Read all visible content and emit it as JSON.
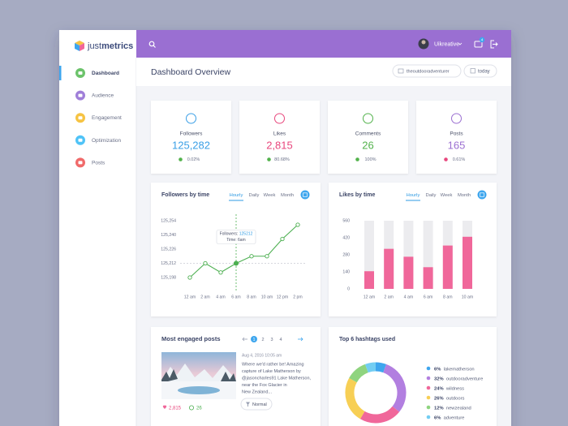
{
  "sidebar": {
    "logo_prefix": "just",
    "logo_suffix": "metrics",
    "nav": [
      "Dashboard",
      "Audience",
      "Engagement",
      "Optimization",
      "Posts"
    ]
  },
  "topbar": {
    "user": "Uikreative",
    "notifications": "4"
  },
  "header": {
    "title": "Dashboard Overview",
    "account": "theoutdooradventurer",
    "range": "today"
  },
  "stats": [
    {
      "label": "Followers",
      "value": "125,282",
      "change": "0.02%"
    },
    {
      "label": "Likes",
      "value": "2,815",
      "change": "80.68%"
    },
    {
      "label": "Comments",
      "value": "26",
      "change": "100%"
    },
    {
      "label": "Posts",
      "value": "165",
      "change": "0.61%"
    }
  ],
  "posts_card": {
    "title": "Most engaged posts",
    "pages": [
      "1",
      "2",
      "3",
      "4"
    ],
    "date": "Aug 4, 2016 10:05 am",
    "text_lines": [
      "Where we'd rather be! Amazing",
      "capture of Lake Matherson by",
      "@jasoncharles91 Lake Matherson,",
      "near the Fox Glacier in",
      "New Zealand..."
    ],
    "tag": "Normal",
    "likes": "2,815",
    "comments": "26"
  },
  "chart_data": [
    {
      "type": "line",
      "title": "Followers by time",
      "tabs": [
        "Hourly",
        "Daily",
        "Week",
        "Month"
      ],
      "categories": [
        "12 am",
        "2 am",
        "4 am",
        "6 am",
        "8 am",
        "10 am",
        "12 pm",
        "2 pm"
      ],
      "values": [
        125198,
        125212,
        125203,
        125212,
        125219,
        125219,
        125236,
        125250
      ],
      "color": "#4caf50",
      "ylim": [
        125198,
        125254
      ],
      "yticks": [
        {
          "value": 125198,
          "label": "125,198"
        },
        {
          "value": 125212,
          "label": "125,212"
        },
        {
          "value": 125226,
          "label": "125,226"
        },
        {
          "value": 125240,
          "label": "125,240"
        },
        {
          "value": 125254,
          "label": "125,254"
        }
      ],
      "tooltip_label": "Followers:",
      "tooltip_time": "Time: 6am"
    },
    {
      "type": "bar",
      "title": "Likes by time",
      "tabs": [
        "Hourly",
        "Daily",
        "Week",
        "Month"
      ],
      "categories": [
        "12 am",
        "2 am",
        "4 am",
        "6 am",
        "8 am",
        "10 am"
      ],
      "values": [
        145,
        329,
        264,
        178,
        356,
        428
      ],
      "color": "#f0679a",
      "ylim": [
        0,
        560
      ],
      "yticks": [
        0,
        140,
        280,
        420,
        560
      ]
    },
    {
      "type": "pie",
      "title": "Top 6 hashtags used",
      "categories": [
        "lakematherson",
        "outdooradventure",
        "wildness",
        "outdoors",
        "newzealand",
        "adventure"
      ],
      "values": [
        6,
        32,
        24,
        26,
        12,
        6
      ],
      "value_labels": [
        "6%",
        "32%",
        "24%",
        "26%",
        "12%",
        "6%"
      ],
      "colors": [
        "#3ea6ee",
        "#b27fe0",
        "#f0679a",
        "#f7cf55",
        "#8fd47f",
        "#72cdf2"
      ]
    }
  ]
}
